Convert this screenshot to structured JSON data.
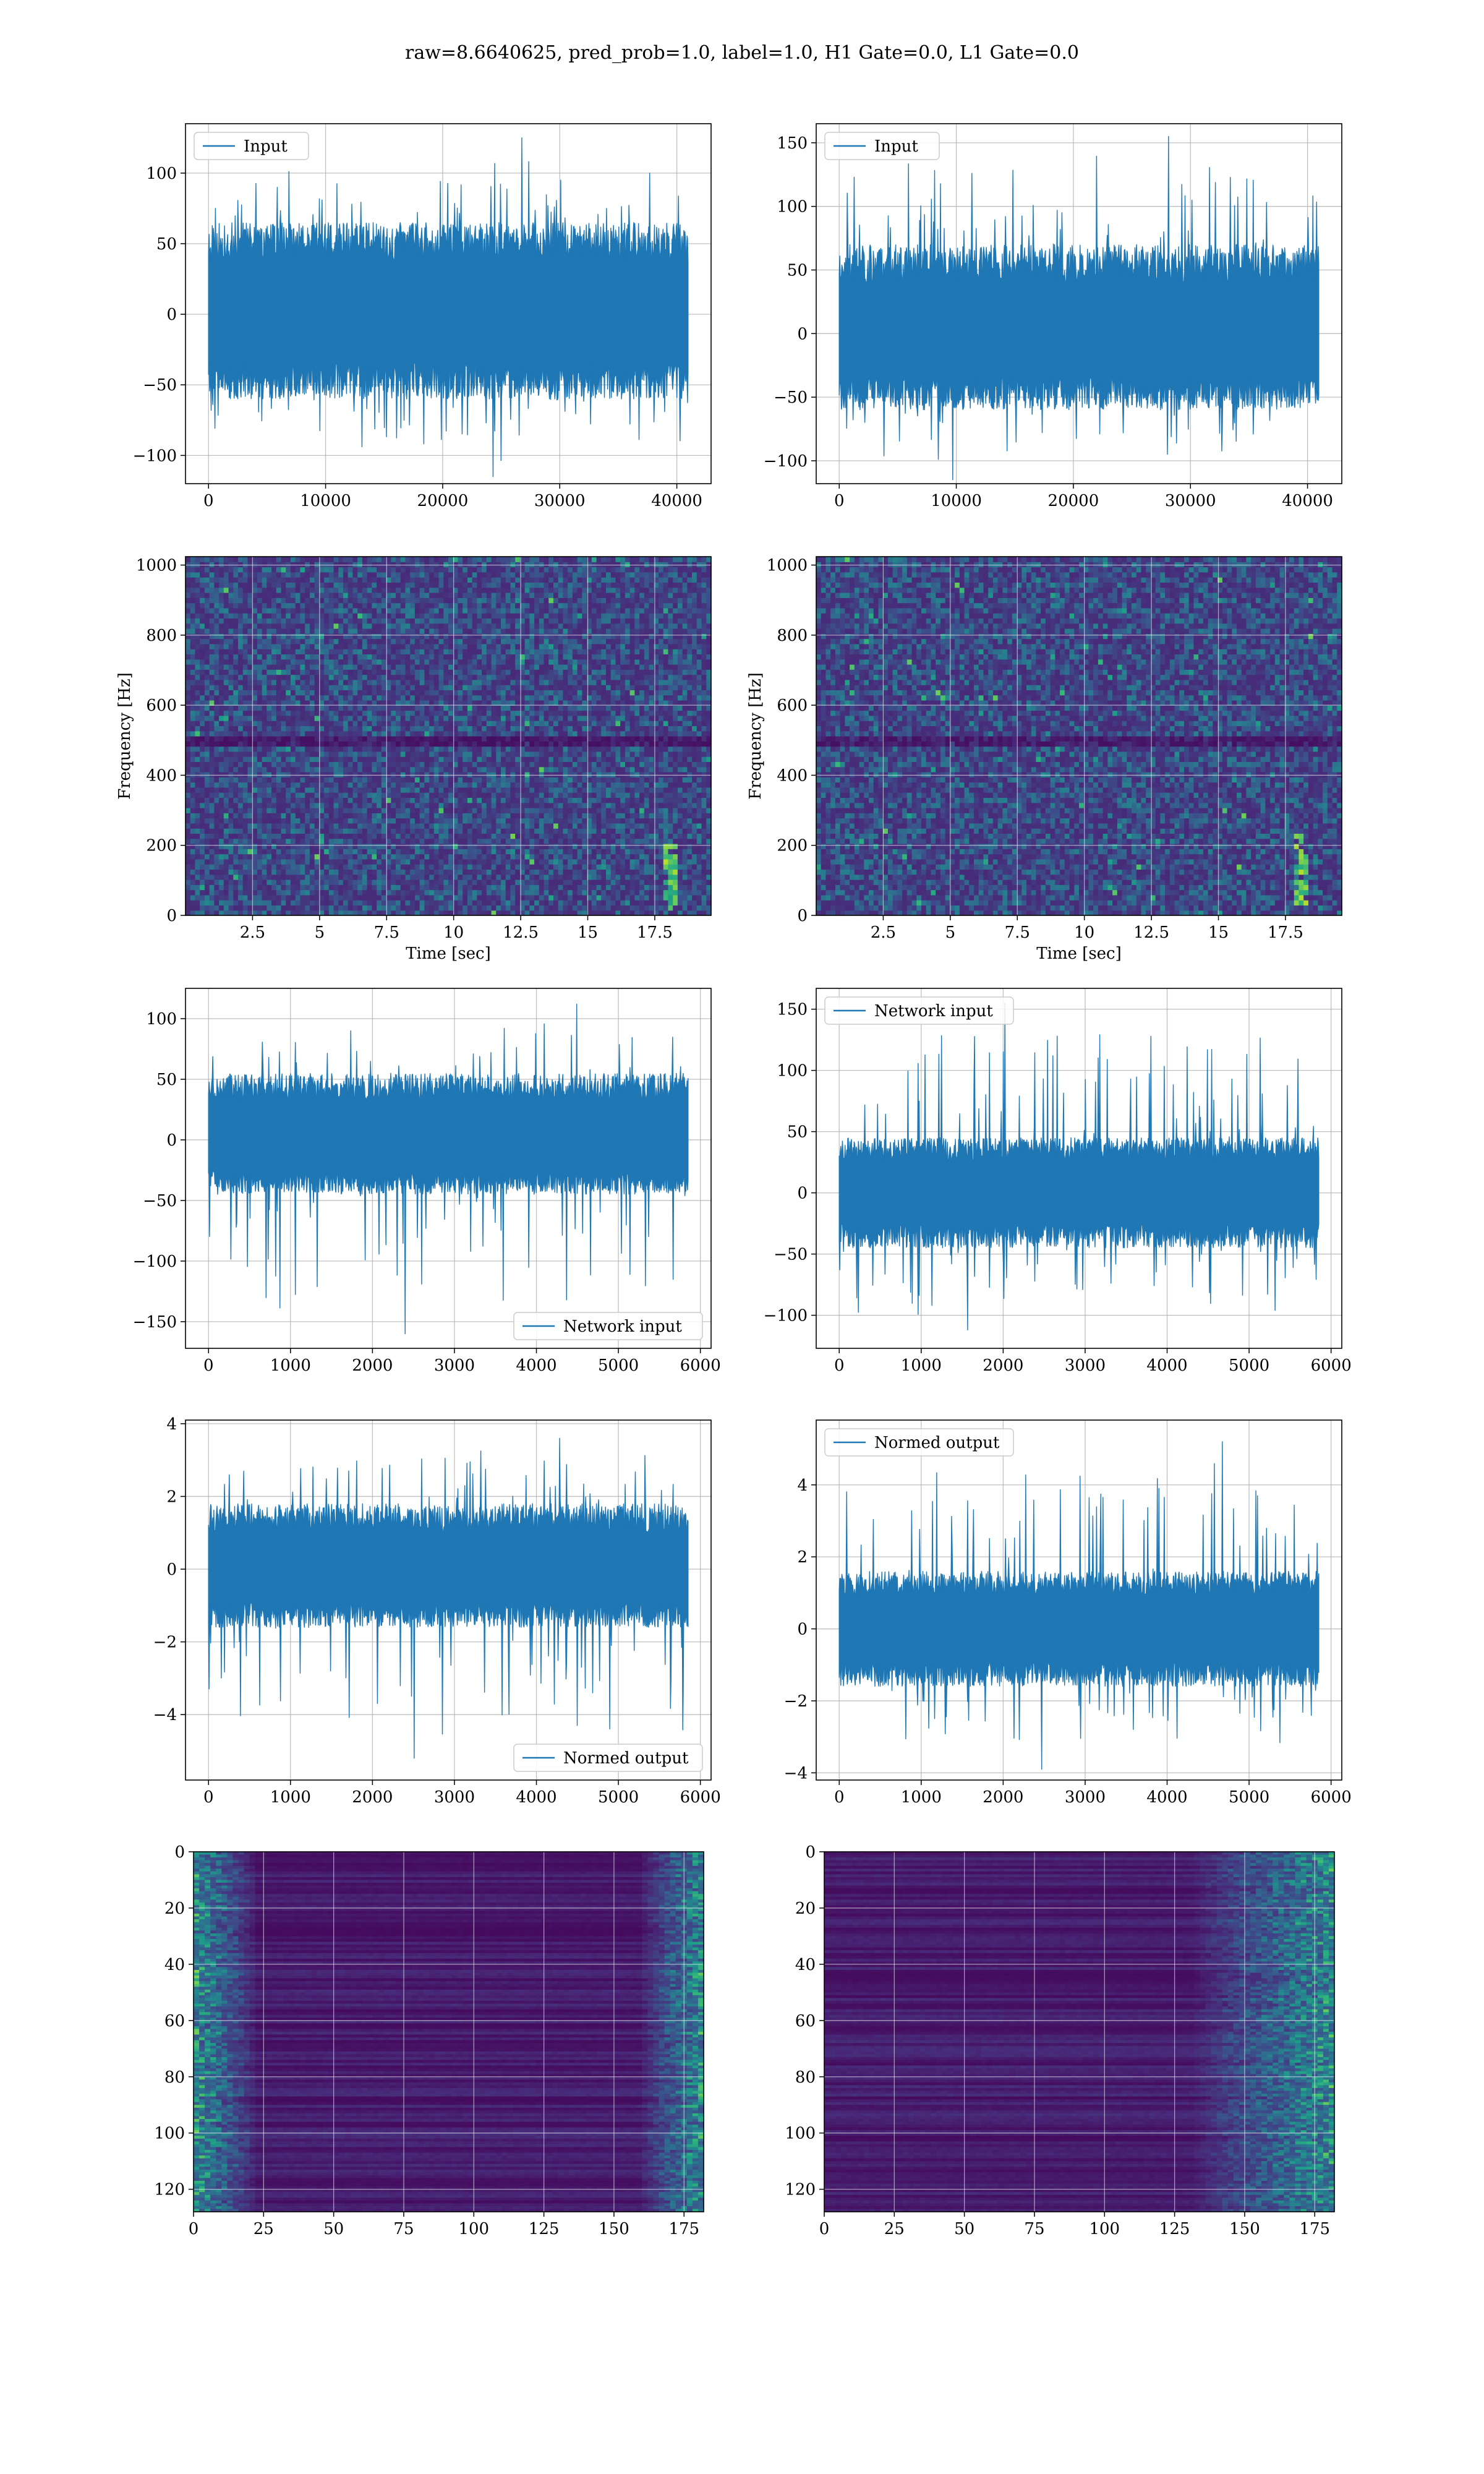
{
  "figure": {
    "suptitle": "raw=8.6640625, pred_prob=1.0, label=1.0, H1 Gate=0.0, L1 Gate=0.0",
    "line_color": "#1f77b4"
  },
  "chart_data": [
    {
      "id": "input-h1",
      "type": "line",
      "legend": "Input",
      "legend_loc": "upper-left",
      "x_range": [
        0,
        40960
      ],
      "ylim": [
        -120,
        135
      ],
      "x_ticks": [
        0,
        10000,
        20000,
        30000,
        40000
      ],
      "y_ticks": [
        -100,
        -50,
        0,
        50,
        100
      ],
      "envelope": {
        "upper_typical": 65,
        "lower_typical": -60,
        "upper_peak": 125,
        "lower_peak": -115
      },
      "grid": true
    },
    {
      "id": "input-l1",
      "type": "line",
      "legend": "Input",
      "legend_loc": "upper-left",
      "x_range": [
        0,
        40960
      ],
      "ylim": [
        -118,
        165
      ],
      "x_ticks": [
        0,
        10000,
        20000,
        30000,
        40000
      ],
      "y_ticks": [
        -100,
        -50,
        0,
        50,
        100,
        150
      ],
      "envelope": {
        "upper_typical": 70,
        "lower_typical": -60,
        "upper_peak": 155,
        "lower_peak": -115
      },
      "grid": true
    },
    {
      "id": "spectrogram-h1",
      "type": "heatmap",
      "colormap": "viridis",
      "xlabel": "Time [sec]",
      "ylabel": "Frequency [Hz]",
      "xlim": [
        0,
        19.6
      ],
      "ylim": [
        0,
        1024
      ],
      "x_ticks": [
        2.5,
        5.0,
        7.5,
        10.0,
        12.5,
        15.0,
        17.5
      ],
      "y_ticks": [
        0,
        200,
        400,
        600,
        800,
        1000
      ],
      "dark_band_hz": 500,
      "bright_track": {
        "t": 18.1,
        "f_min": 20,
        "f_max": 220
      },
      "grid": true
    },
    {
      "id": "spectrogram-l1",
      "type": "heatmap",
      "colormap": "viridis",
      "xlabel": "Time [sec]",
      "ylabel": "Frequency [Hz]",
      "xlim": [
        0,
        19.6
      ],
      "ylim": [
        0,
        1024
      ],
      "x_ticks": [
        2.5,
        5.0,
        7.5,
        10.0,
        12.5,
        15.0,
        17.5
      ],
      "y_ticks": [
        0,
        200,
        400,
        600,
        800,
        1000
      ],
      "dark_band_hz": 500,
      "bright_track": {
        "t": 18.1,
        "f_min": 30,
        "f_max": 230
      },
      "grid": true
    },
    {
      "id": "network-input-h1",
      "type": "line",
      "legend": "Network input",
      "legend_loc": "lower-right",
      "x_range": [
        0,
        5850
      ],
      "ylim": [
        -172,
        125
      ],
      "x_ticks": [
        0,
        1000,
        2000,
        3000,
        4000,
        5000,
        6000
      ],
      "y_ticks": [
        -150,
        -100,
        -50,
        0,
        50,
        100
      ],
      "envelope": {
        "upper_typical": 55,
        "lower_typical": -45,
        "upper_peak": 112,
        "lower_peak": -160
      },
      "grid": true
    },
    {
      "id": "network-input-l1",
      "type": "line",
      "legend": "Network input",
      "legend_loc": "upper-left",
      "x_range": [
        0,
        5850
      ],
      "ylim": [
        -127,
        167
      ],
      "x_ticks": [
        0,
        1000,
        2000,
        3000,
        4000,
        5000,
        6000
      ],
      "y_ticks": [
        -100,
        -50,
        0,
        50,
        100,
        150
      ],
      "envelope": {
        "upper_typical": 45,
        "lower_typical": -45,
        "upper_peak": 155,
        "lower_peak": -112
      },
      "grid": true
    },
    {
      "id": "normed-output-h1",
      "type": "line",
      "legend": "Normed output",
      "legend_loc": "lower-right",
      "x_range": [
        0,
        5850
      ],
      "ylim": [
        -5.8,
        4.1
      ],
      "x_ticks": [
        0,
        1000,
        2000,
        3000,
        4000,
        5000,
        6000
      ],
      "y_ticks": [
        -4,
        -2,
        0,
        2,
        4
      ],
      "envelope": {
        "upper_typical": 1.8,
        "lower_typical": -1.6,
        "upper_peak": 3.6,
        "lower_peak": -5.2
      },
      "grid": true
    },
    {
      "id": "normed-output-l1",
      "type": "line",
      "legend": "Normed output",
      "legend_loc": "upper-left",
      "x_range": [
        0,
        5850
      ],
      "ylim": [
        -4.2,
        5.8
      ],
      "x_ticks": [
        0,
        1000,
        2000,
        3000,
        4000,
        5000,
        6000
      ],
      "y_ticks": [
        -4,
        -2,
        0,
        2,
        4
      ],
      "envelope": {
        "upper_typical": 1.6,
        "lower_typical": -1.6,
        "upper_peak": 5.2,
        "lower_peak": -3.9
      },
      "grid": true
    },
    {
      "id": "feature-map-h1",
      "type": "heatmap",
      "colormap": "viridis",
      "xlim": [
        0,
        182
      ],
      "ylim": [
        128,
        0
      ],
      "x_ticks": [
        0,
        25,
        50,
        75,
        100,
        125,
        150,
        175
      ],
      "y_ticks": [
        0,
        20,
        40,
        60,
        80,
        100,
        120
      ],
      "hot_columns": [
        [
          0,
          22
        ],
        [
          158,
          182
        ]
      ],
      "grid": true
    },
    {
      "id": "feature-map-l1",
      "type": "heatmap",
      "colormap": "viridis",
      "xlim": [
        0,
        182
      ],
      "ylim": [
        128,
        0
      ],
      "x_ticks": [
        0,
        25,
        50,
        75,
        100,
        125,
        150,
        175
      ],
      "y_ticks": [
        0,
        20,
        40,
        60,
        80,
        100,
        120
      ],
      "hot_columns": [
        [
          130,
          182
        ]
      ],
      "grid": true
    }
  ]
}
